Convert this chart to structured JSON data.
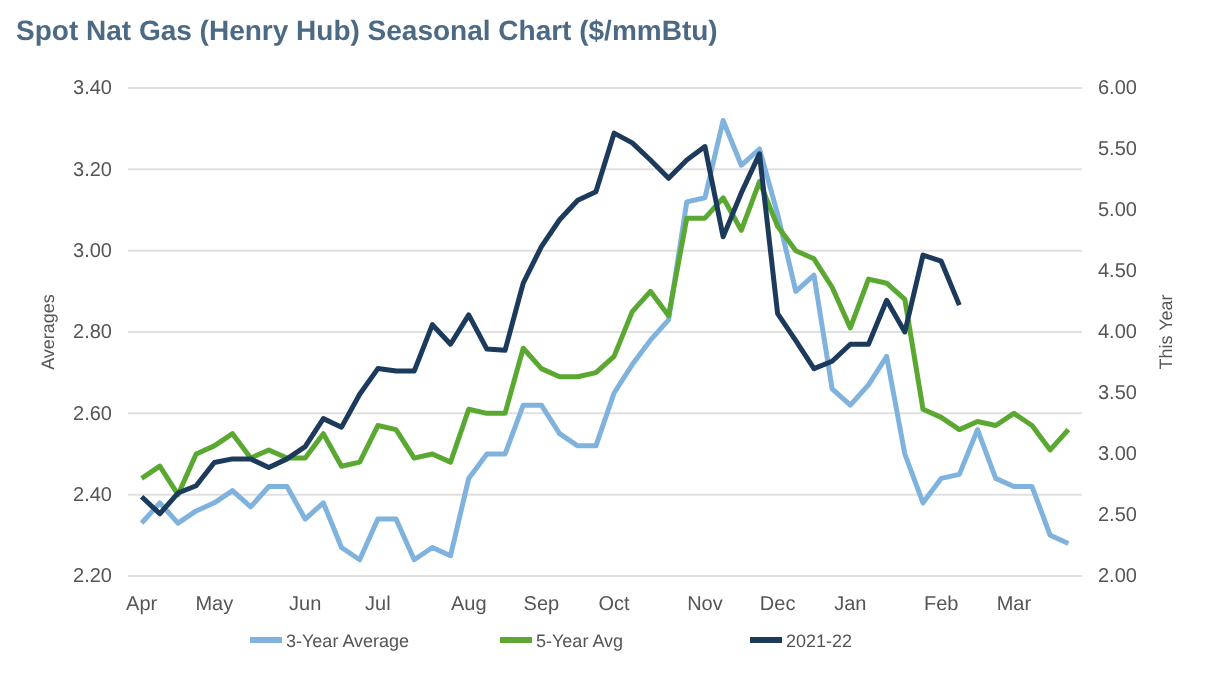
{
  "chart_data": {
    "type": "line",
    "title": "Spot Nat Gas (Henry Hub) Seasonal Chart ($/mmBtu)",
    "ylabel": "Averages",
    "y2label": "This Year",
    "categories": [
      "Apr",
      null,
      null,
      null,
      "May",
      null,
      null,
      null,
      null,
      "Jun",
      null,
      null,
      null,
      "Jul",
      null,
      null,
      null,
      null,
      "Aug",
      null,
      null,
      null,
      "Sep",
      null,
      null,
      null,
      "Oct",
      null,
      null,
      null,
      null,
      "Nov",
      null,
      null,
      null,
      "Dec",
      null,
      null,
      null,
      "Jan",
      null,
      null,
      null,
      null,
      "Feb",
      null,
      null,
      null,
      "Mar",
      null,
      null,
      null
    ],
    "ylim": [
      2.2,
      3.4
    ],
    "yticks": [
      {
        "value": 2.2,
        "label": "2.20"
      },
      {
        "value": 2.4,
        "label": "2.40"
      },
      {
        "value": 2.6,
        "label": "2.60"
      },
      {
        "value": 2.8,
        "label": "2.80"
      },
      {
        "value": 3.0,
        "label": "3.00"
      },
      {
        "value": 3.2,
        "label": "3.20"
      },
      {
        "value": 3.4,
        "label": "3.40"
      }
    ],
    "y2lim": [
      2.0,
      6.0
    ],
    "y2ticks": [
      {
        "value": 2.0,
        "label": "2.00"
      },
      {
        "value": 2.5,
        "label": "2.50"
      },
      {
        "value": 3.0,
        "label": "3.00"
      },
      {
        "value": 3.5,
        "label": "3.50"
      },
      {
        "value": 4.0,
        "label": "4.00"
      },
      {
        "value": 4.5,
        "label": "4.50"
      },
      {
        "value": 5.0,
        "label": "5.00"
      },
      {
        "value": 5.5,
        "label": "5.50"
      },
      {
        "value": 6.0,
        "label": "6.00"
      }
    ],
    "grid": "y",
    "legend": "bottom",
    "series": [
      {
        "name": "3-Year Average",
        "color": "#7fb2dc",
        "values": [
          2.33,
          2.38,
          2.33,
          2.36,
          2.38,
          2.41,
          2.37,
          2.42,
          2.42,
          2.34,
          2.38,
          2.27,
          2.24,
          2.34,
          2.34,
          2.24,
          2.27,
          2.25,
          2.44,
          2.5,
          2.5,
          2.62,
          2.62,
          2.55,
          2.52,
          2.52,
          2.65,
          2.72,
          2.78,
          2.83,
          3.12,
          3.13,
          3.32,
          3.21,
          3.25,
          3.09,
          2.9,
          2.94,
          2.66,
          2.62,
          2.67,
          2.74,
          2.5,
          2.38,
          2.44,
          2.45,
          2.56,
          2.44,
          2.42,
          2.42,
          2.3,
          2.28
        ]
      },
      {
        "name": "5-Year Avg",
        "color": "#5aa832",
        "values": [
          2.44,
          2.47,
          2.4,
          2.5,
          2.52,
          2.55,
          2.49,
          2.51,
          2.49,
          2.49,
          2.55,
          2.47,
          2.48,
          2.57,
          2.56,
          2.49,
          2.5,
          2.48,
          2.61,
          2.6,
          2.6,
          2.76,
          2.71,
          2.69,
          2.69,
          2.7,
          2.74,
          2.85,
          2.9,
          2.84,
          3.08,
          3.08,
          3.13,
          3.05,
          3.17,
          3.06,
          3.0,
          2.98,
          2.91,
          2.81,
          2.93,
          2.92,
          2.88,
          2.61,
          2.59,
          2.56,
          2.58,
          2.57,
          2.6,
          2.57,
          2.51,
          2.56
        ]
      },
      {
        "name": "2021-22",
        "color": "#1b3a5c",
        "axis": "y2",
        "values": [
          2.65,
          2.51,
          2.68,
          2.74,
          2.93,
          2.96,
          2.96,
          2.89,
          2.96,
          3.06,
          3.29,
          3.22,
          3.49,
          3.7,
          3.68,
          3.68,
          4.06,
          3.9,
          4.14,
          3.86,
          3.85,
          4.4,
          4.7,
          4.92,
          5.08,
          5.15,
          5.63,
          5.55,
          5.41,
          5.26,
          5.41,
          5.52,
          4.78,
          5.14,
          5.46,
          4.15,
          3.93,
          3.7,
          3.76,
          3.9,
          3.9,
          4.26,
          4.0,
          4.63,
          4.58,
          4.22,
          null,
          null,
          null,
          null,
          null,
          null
        ]
      }
    ]
  }
}
